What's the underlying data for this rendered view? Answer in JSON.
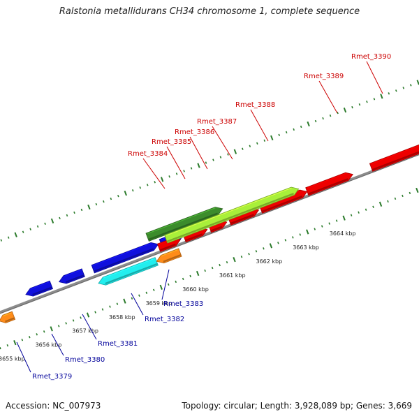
{
  "header": {
    "title": "Ralstonia metallidurans CH34 chromosome 1, complete sequence"
  },
  "footer": {
    "accession": "Accession: NC_007973",
    "summary": "Topology: circular; Length: 3,928,089 bp; Genes: 3,669"
  },
  "colors": {
    "backbone": "#8c8c8c",
    "tick": "#2a7a2a",
    "label_top": "#cc0000",
    "label_bottom": "#00009a",
    "gene_red": "#ee0000",
    "gene_blue": "#1010dd",
    "gene_lime": "#a8f03a",
    "gene_darkgreen": "#3c8c2c",
    "gene_cyan": "#22eeee",
    "gene_orange": "#ff8c1a"
  },
  "scale_labels": [
    "3655 kbp",
    "3656 kbp",
    "3657 kbp",
    "3658 kbp",
    "3659 kbp",
    "3660 kbp",
    "3661 kbp",
    "3662 kbp",
    "3663 kbp",
    "3664 kbp"
  ],
  "genes": [
    {
      "label": "Rmet_3379",
      "color": "gene_orange",
      "strand": "reverse",
      "callout": true
    },
    {
      "label": "Rmet_3380",
      "color": "gene_blue",
      "strand": "reverse",
      "callout": true
    },
    {
      "label": "Rmet_3381",
      "color": "gene_blue",
      "strand": "reverse",
      "callout": true
    },
    {
      "label": "Rmet_3382",
      "color": "gene_cyan",
      "strand": "reverse",
      "callout": true
    },
    {
      "label": "Rmet_3383",
      "color": "gene_orange",
      "strand": "reverse",
      "callout": true
    },
    {
      "label": "Rmet_3384",
      "color": "gene_darkgreen",
      "strand": "forward",
      "callout": true
    },
    {
      "label": "Rmet_3385",
      "color": "gene_red",
      "strand": "forward",
      "callout": true
    },
    {
      "label": "Rmet_3386",
      "color": "gene_red",
      "strand": "forward",
      "callout": true
    },
    {
      "label": "Rmet_3387",
      "color": "gene_red",
      "strand": "forward",
      "callout": true
    },
    {
      "label": "Rmet_3388",
      "color": "gene_lime",
      "strand": "forward",
      "callout": true
    },
    {
      "label": "Rmet_3389",
      "color": "gene_red",
      "strand": "forward",
      "callout": true
    },
    {
      "label": "Rmet_3390",
      "color": "gene_lime",
      "strand": "forward",
      "callout": true
    }
  ]
}
